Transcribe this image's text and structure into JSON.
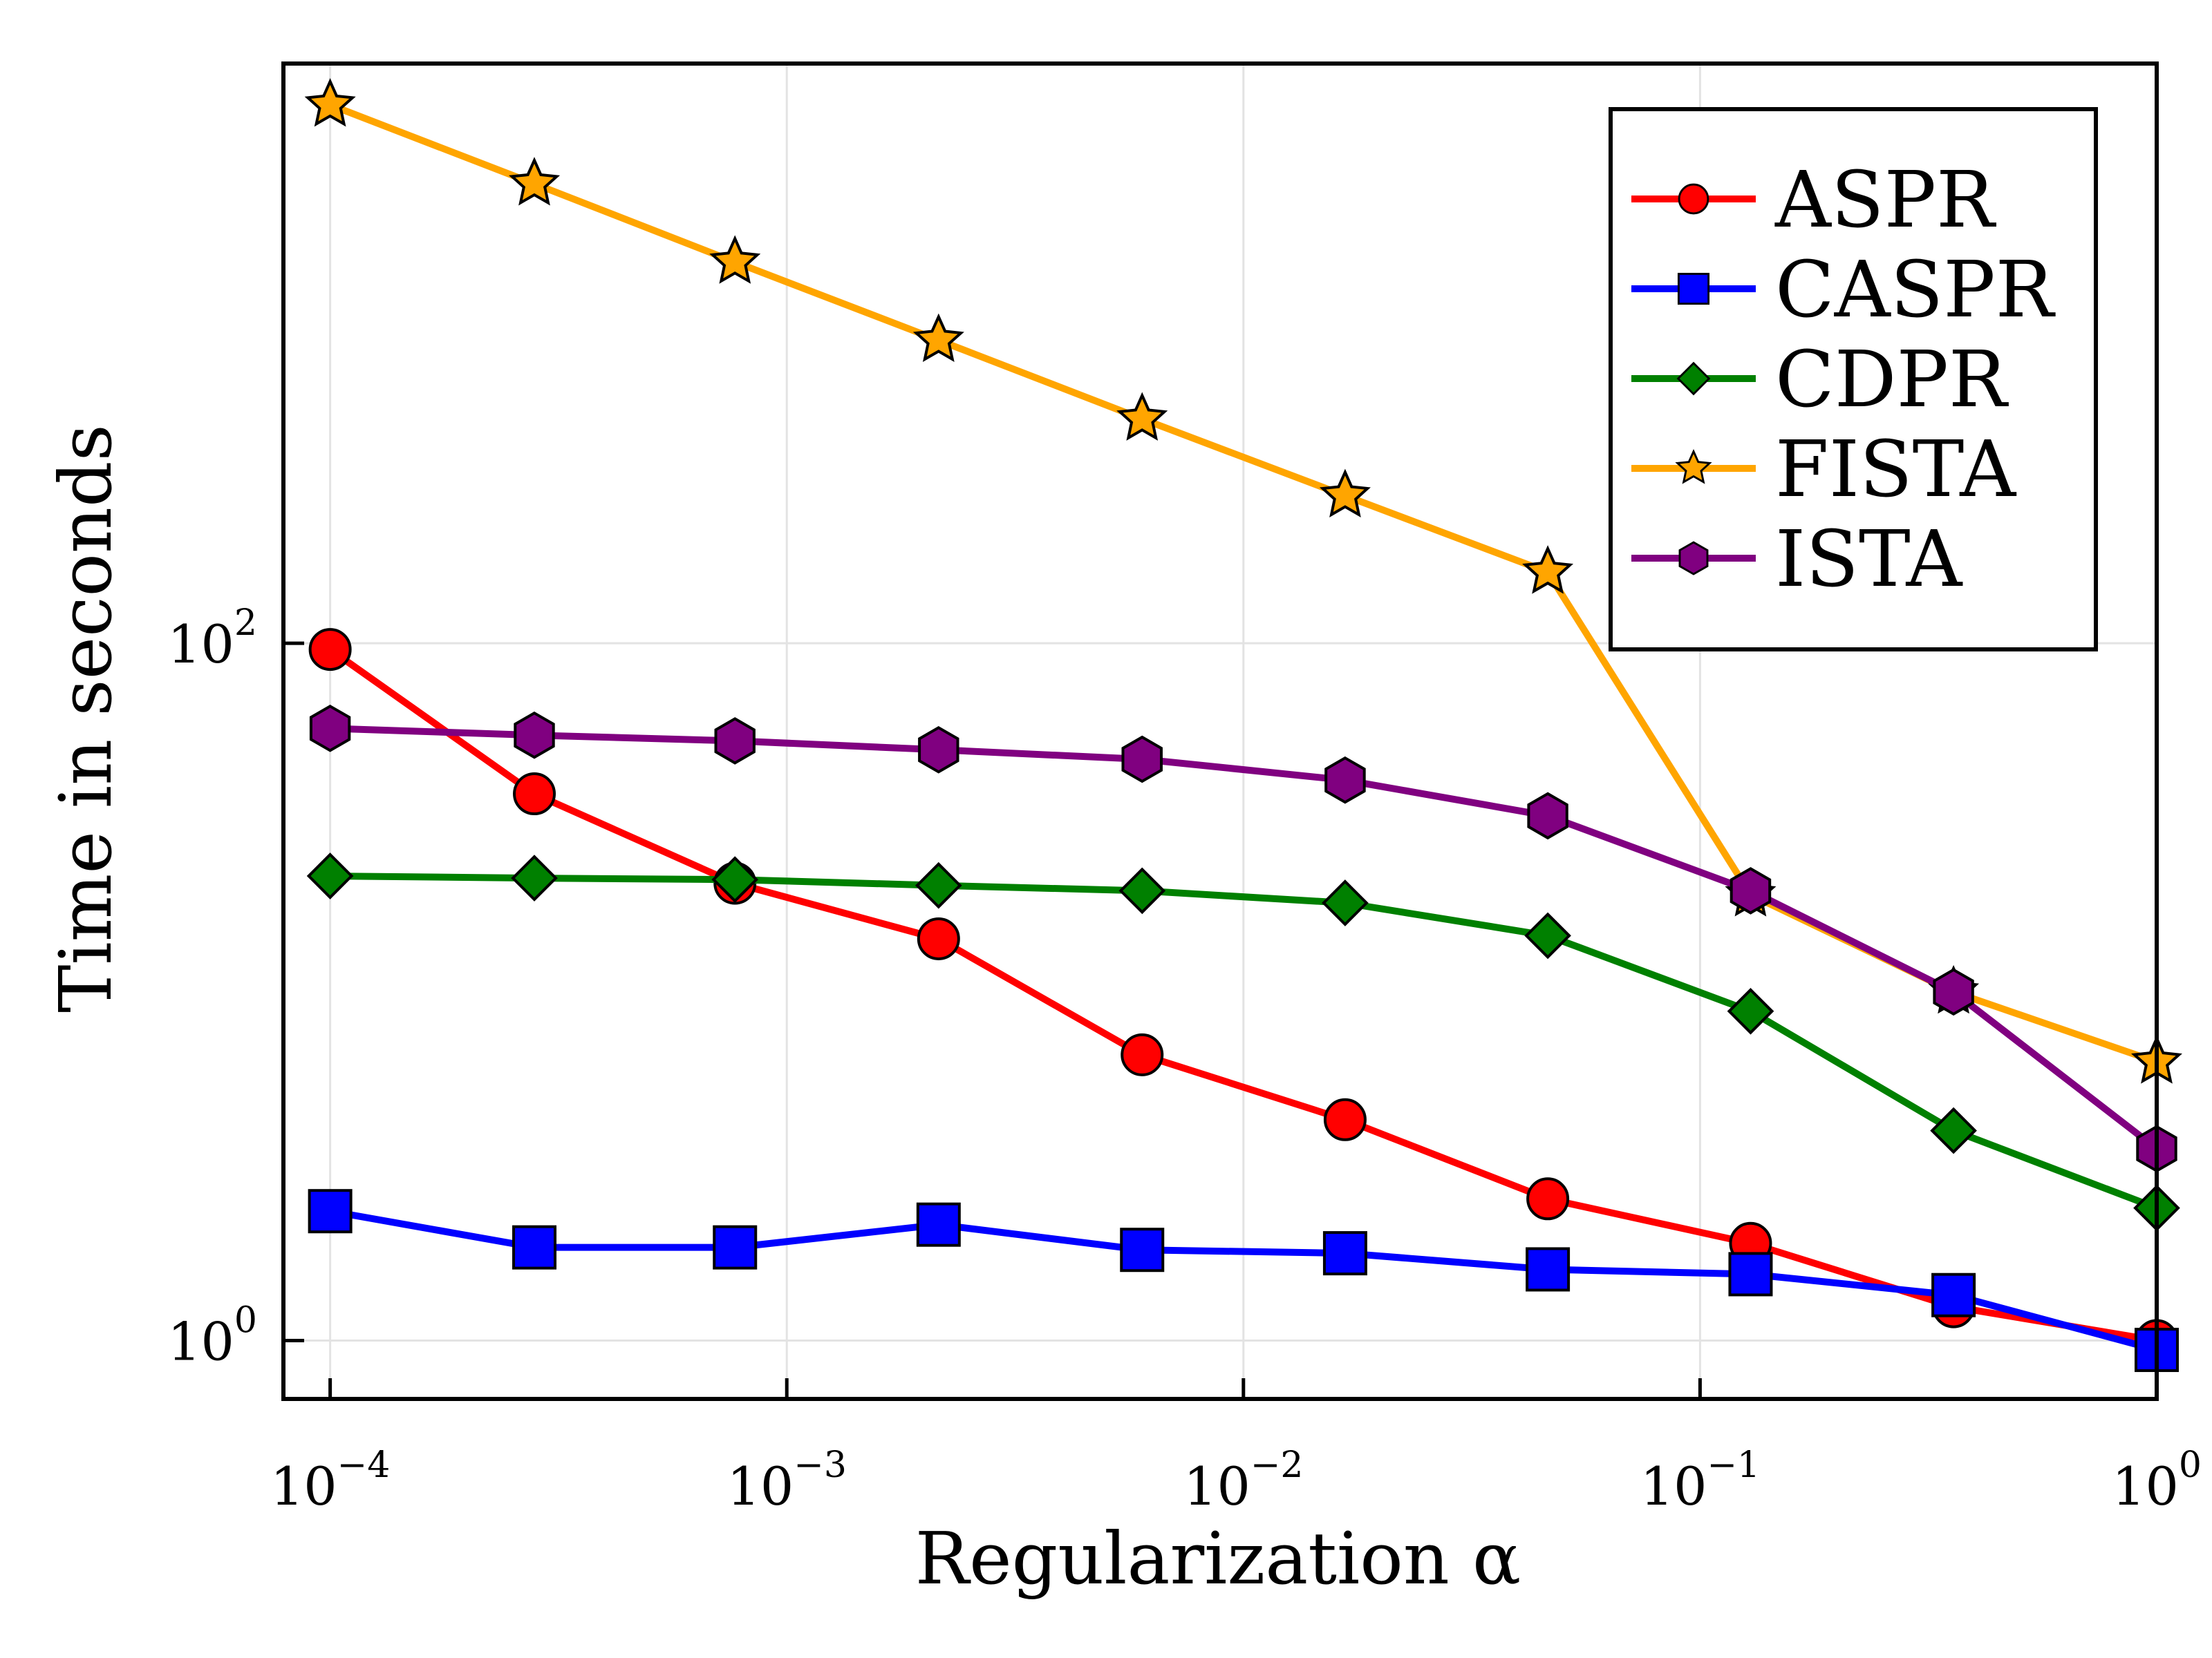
{
  "chart_data": {
    "type": "line",
    "xlabel": "Regularization α",
    "ylabel": "Time in seconds",
    "xscale": "log",
    "yscale": "log",
    "xlim": [
      7.9e-05,
      1.0
    ],
    "ylim": [
      0.68,
      4600
    ],
    "grid": true,
    "legend_position": "top-right",
    "x_ticks": [
      {
        "base": "10",
        "exp": "−4",
        "value": 0.0001
      },
      {
        "base": "10",
        "exp": "−3",
        "value": 0.001
      },
      {
        "base": "10",
        "exp": "−2",
        "value": 0.01
      },
      {
        "base": "10",
        "exp": "−1",
        "value": 0.1
      },
      {
        "base": "10",
        "exp": "0",
        "value": 1
      }
    ],
    "y_ticks": [
      {
        "base": "10",
        "exp": "0",
        "value": 1
      },
      {
        "base": "10",
        "exp": "2",
        "value": 100
      }
    ],
    "x": [
      0.0001,
      0.00028,
      0.00077,
      0.00215,
      0.006,
      0.0167,
      0.0464,
      0.129,
      0.359,
      1.0
    ],
    "series": [
      {
        "name": "ASPR",
        "color": "#ff0000",
        "marker": "circle",
        "values": [
          96,
          37,
          20.5,
          14.2,
          6.6,
          4.3,
          2.55,
          1.9,
          1.25,
          1.0
        ]
      },
      {
        "name": "CASPR",
        "color": "#0000ff",
        "marker": "square",
        "values": [
          2.35,
          1.85,
          1.85,
          2.15,
          1.82,
          1.78,
          1.6,
          1.55,
          1.35,
          0.94
        ]
      },
      {
        "name": "CDPR",
        "color": "#008000",
        "marker": "diamond",
        "values": [
          21.5,
          21.2,
          21.0,
          20.2,
          19.5,
          18.0,
          14.5,
          8.8,
          4.0,
          2.4
        ]
      },
      {
        "name": "FISTA",
        "color": "#ffa500",
        "marker": "star",
        "values": [
          3500,
          2080,
          1240,
          740,
          440,
          265,
          160,
          19,
          10,
          6.3
        ]
      },
      {
        "name": "ISTA",
        "color": "#800080",
        "marker": "hexagon",
        "values": [
          57,
          54.5,
          52.5,
          49.5,
          46.5,
          40.5,
          32,
          19.5,
          10,
          3.55
        ]
      }
    ]
  }
}
